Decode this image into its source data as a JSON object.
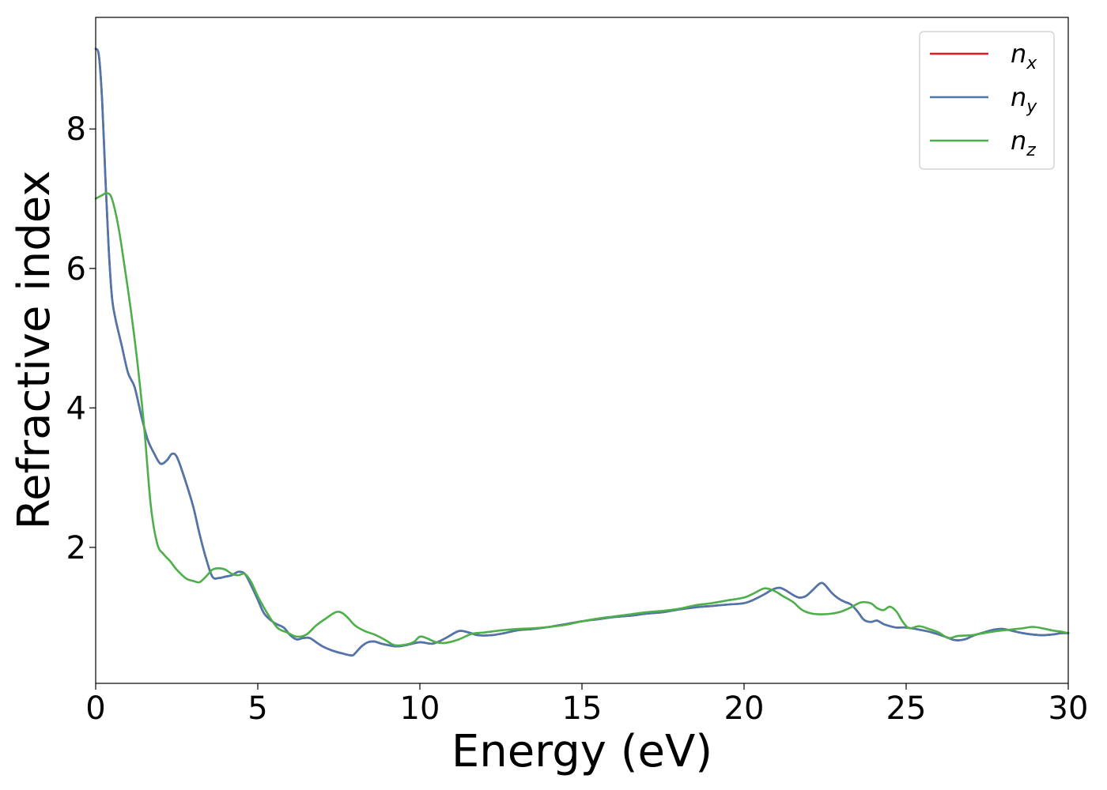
{
  "chart_data": {
    "type": "line",
    "xlabel": "Energy (eV)",
    "ylabel": "Refractive index",
    "xlim": [
      0,
      30
    ],
    "ylim": [
      0.05,
      9.6
    ],
    "xticks": [
      0,
      5,
      10,
      15,
      20,
      25,
      30
    ],
    "yticks": [
      2,
      4,
      6,
      8
    ],
    "grid": false,
    "legend_position": "top-right",
    "series": [
      {
        "name": "n_x",
        "legend_base": "n",
        "legend_sub": "x",
        "color": "#e41a1c",
        "x": [
          0,
          0.1,
          0.2,
          0.3,
          0.4,
          0.5,
          0.6,
          0.8,
          1.0,
          1.2,
          1.4,
          1.6,
          1.8,
          2.0,
          2.2,
          2.35,
          2.5,
          2.7,
          3.0,
          3.2,
          3.4,
          3.6,
          3.8,
          4.0,
          4.2,
          4.4,
          4.6,
          4.8,
          5.0,
          5.2,
          5.5,
          5.8,
          6.0,
          6.2,
          6.4,
          6.6,
          6.8,
          7.0,
          7.3,
          7.6,
          7.9,
          8.0,
          8.2,
          8.4,
          8.6,
          8.8,
          9.0,
          9.3,
          9.6,
          10.0,
          10.4,
          10.8,
          11.2,
          11.5,
          11.8,
          12.2,
          12.6,
          13.0,
          13.5,
          14.0,
          14.5,
          15.0,
          15.5,
          16.0,
          16.5,
          17.0,
          17.5,
          18.0,
          18.5,
          19.0,
          19.5,
          20.0,
          20.3,
          20.6,
          20.9,
          21.1,
          21.3,
          21.5,
          21.7,
          21.9,
          22.1,
          22.3,
          22.4,
          22.5,
          22.7,
          22.9,
          23.1,
          23.3,
          23.5,
          23.7,
          23.9,
          24.1,
          24.3,
          24.5,
          24.7,
          25.0,
          25.4,
          25.8,
          26.2,
          26.5,
          26.8,
          27.1,
          27.4,
          27.7,
          28.0,
          28.3,
          28.6,
          28.9,
          29.2,
          29.5,
          29.8,
          30.0
        ],
        "y": [
          9.15,
          9.05,
          8.4,
          7.3,
          6.3,
          5.6,
          5.3,
          4.9,
          4.5,
          4.3,
          3.9,
          3.55,
          3.35,
          3.2,
          3.25,
          3.34,
          3.3,
          3.05,
          2.6,
          2.2,
          1.85,
          1.58,
          1.56,
          1.58,
          1.6,
          1.65,
          1.62,
          1.45,
          1.25,
          1.05,
          0.92,
          0.85,
          0.74,
          0.68,
          0.7,
          0.7,
          0.64,
          0.58,
          0.52,
          0.48,
          0.45,
          0.48,
          0.58,
          0.64,
          0.65,
          0.62,
          0.6,
          0.58,
          0.6,
          0.64,
          0.62,
          0.7,
          0.8,
          0.78,
          0.74,
          0.74,
          0.77,
          0.81,
          0.83,
          0.86,
          0.9,
          0.94,
          0.97,
          1.0,
          1.02,
          1.05,
          1.07,
          1.11,
          1.14,
          1.16,
          1.18,
          1.2,
          1.25,
          1.32,
          1.4,
          1.42,
          1.38,
          1.32,
          1.28,
          1.3,
          1.38,
          1.47,
          1.49,
          1.46,
          1.35,
          1.27,
          1.22,
          1.18,
          1.08,
          0.96,
          0.93,
          0.95,
          0.9,
          0.87,
          0.85,
          0.85,
          0.82,
          0.78,
          0.72,
          0.67,
          0.68,
          0.74,
          0.78,
          0.82,
          0.83,
          0.8,
          0.77,
          0.75,
          0.74,
          0.75,
          0.77,
          0.77
        ]
      },
      {
        "name": "n_y",
        "legend_base": "n",
        "legend_sub": "y",
        "color": "#4b77ad",
        "x": [
          0,
          0.1,
          0.2,
          0.3,
          0.4,
          0.5,
          0.6,
          0.8,
          1.0,
          1.2,
          1.4,
          1.6,
          1.8,
          2.0,
          2.2,
          2.35,
          2.5,
          2.7,
          3.0,
          3.2,
          3.4,
          3.6,
          3.8,
          4.0,
          4.2,
          4.4,
          4.6,
          4.8,
          5.0,
          5.2,
          5.5,
          5.8,
          6.0,
          6.2,
          6.4,
          6.6,
          6.8,
          7.0,
          7.3,
          7.6,
          7.9,
          8.0,
          8.2,
          8.4,
          8.6,
          8.8,
          9.0,
          9.3,
          9.6,
          10.0,
          10.4,
          10.8,
          11.2,
          11.5,
          11.8,
          12.2,
          12.6,
          13.0,
          13.5,
          14.0,
          14.5,
          15.0,
          15.5,
          16.0,
          16.5,
          17.0,
          17.5,
          18.0,
          18.5,
          19.0,
          19.5,
          20.0,
          20.3,
          20.6,
          20.9,
          21.1,
          21.3,
          21.5,
          21.7,
          21.9,
          22.1,
          22.3,
          22.4,
          22.5,
          22.7,
          22.9,
          23.1,
          23.3,
          23.5,
          23.7,
          23.9,
          24.1,
          24.3,
          24.5,
          24.7,
          25.0,
          25.4,
          25.8,
          26.2,
          26.5,
          26.8,
          27.1,
          27.4,
          27.7,
          28.0,
          28.3,
          28.6,
          28.9,
          29.2,
          29.5,
          29.8,
          30.0
        ],
        "y": [
          9.15,
          9.05,
          8.4,
          7.3,
          6.3,
          5.6,
          5.3,
          4.9,
          4.5,
          4.3,
          3.9,
          3.55,
          3.35,
          3.2,
          3.25,
          3.34,
          3.3,
          3.05,
          2.6,
          2.2,
          1.85,
          1.58,
          1.56,
          1.58,
          1.6,
          1.65,
          1.62,
          1.45,
          1.25,
          1.05,
          0.92,
          0.85,
          0.74,
          0.68,
          0.7,
          0.7,
          0.64,
          0.58,
          0.52,
          0.48,
          0.45,
          0.48,
          0.58,
          0.64,
          0.65,
          0.62,
          0.6,
          0.58,
          0.6,
          0.64,
          0.62,
          0.7,
          0.8,
          0.78,
          0.74,
          0.74,
          0.77,
          0.81,
          0.83,
          0.86,
          0.9,
          0.94,
          0.97,
          1.0,
          1.02,
          1.05,
          1.07,
          1.11,
          1.14,
          1.16,
          1.18,
          1.2,
          1.25,
          1.32,
          1.4,
          1.42,
          1.38,
          1.32,
          1.28,
          1.3,
          1.38,
          1.47,
          1.49,
          1.46,
          1.35,
          1.27,
          1.22,
          1.18,
          1.08,
          0.96,
          0.93,
          0.95,
          0.9,
          0.87,
          0.85,
          0.85,
          0.82,
          0.78,
          0.72,
          0.67,
          0.68,
          0.74,
          0.78,
          0.82,
          0.83,
          0.8,
          0.77,
          0.75,
          0.74,
          0.75,
          0.77,
          0.77
        ]
      },
      {
        "name": "n_z",
        "legend_base": "n",
        "legend_sub": "z",
        "color": "#4daf4a",
        "x": [
          0,
          0.2,
          0.35,
          0.5,
          0.7,
          0.9,
          1.1,
          1.3,
          1.5,
          1.7,
          1.9,
          2.1,
          2.3,
          2.5,
          2.8,
          3.0,
          3.2,
          3.4,
          3.6,
          3.8,
          4.0,
          4.2,
          4.4,
          4.6,
          4.8,
          5.0,
          5.3,
          5.6,
          5.9,
          6.2,
          6.5,
          6.8,
          7.1,
          7.4,
          7.6,
          7.8,
          8.0,
          8.3,
          8.6,
          8.9,
          9.2,
          9.5,
          9.8,
          10.0,
          10.2,
          10.5,
          10.8,
          11.2,
          11.6,
          12.0,
          12.5,
          13.0,
          13.5,
          14.0,
          14.5,
          15.0,
          15.5,
          16.0,
          16.5,
          17.0,
          17.5,
          18.0,
          18.5,
          19.0,
          19.5,
          20.0,
          20.3,
          20.6,
          20.8,
          21.0,
          21.2,
          21.5,
          21.8,
          22.1,
          22.4,
          22.7,
          23.0,
          23.3,
          23.6,
          23.9,
          24.1,
          24.3,
          24.5,
          24.7,
          24.9,
          25.1,
          25.4,
          25.7,
          26.0,
          26.3,
          26.6,
          27.0,
          27.4,
          27.8,
          28.2,
          28.6,
          28.9,
          29.2,
          29.5,
          29.8,
          30.0
        ],
        "y": [
          7.0,
          7.05,
          7.08,
          7.0,
          6.6,
          6.0,
          5.35,
          4.6,
          3.7,
          2.6,
          2.05,
          1.9,
          1.8,
          1.68,
          1.55,
          1.52,
          1.5,
          1.58,
          1.68,
          1.7,
          1.68,
          1.62,
          1.6,
          1.62,
          1.5,
          1.3,
          1.05,
          0.85,
          0.78,
          0.72,
          0.75,
          0.88,
          0.98,
          1.07,
          1.06,
          0.98,
          0.88,
          0.8,
          0.75,
          0.68,
          0.6,
          0.6,
          0.64,
          0.72,
          0.7,
          0.64,
          0.63,
          0.68,
          0.76,
          0.78,
          0.81,
          0.83,
          0.84,
          0.86,
          0.89,
          0.94,
          0.98,
          1.01,
          1.04,
          1.07,
          1.09,
          1.12,
          1.17,
          1.2,
          1.24,
          1.28,
          1.34,
          1.41,
          1.4,
          1.36,
          1.3,
          1.22,
          1.1,
          1.05,
          1.04,
          1.05,
          1.08,
          1.14,
          1.21,
          1.2,
          1.13,
          1.1,
          1.15,
          1.08,
          0.93,
          0.84,
          0.87,
          0.83,
          0.78,
          0.7,
          0.73,
          0.74,
          0.77,
          0.8,
          0.82,
          0.84,
          0.86,
          0.84,
          0.81,
          0.79,
          0.77
        ]
      }
    ]
  }
}
